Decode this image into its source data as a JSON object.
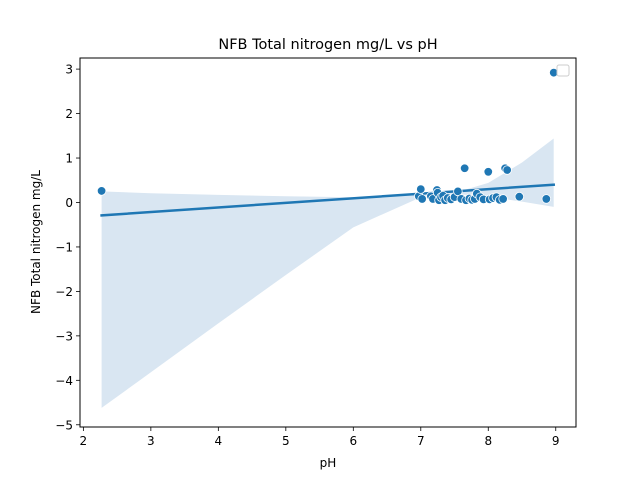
{
  "chart_data": {
    "type": "scatter",
    "title": "NFB Total nitrogen mg/L vs pH",
    "xlabel": "pH",
    "ylabel": "NFB Total nitrogen mg/L",
    "xlim": [
      1.95,
      9.3
    ],
    "ylim": [
      -5.05,
      3.25
    ],
    "xticks": [
      2,
      3,
      4,
      5,
      6,
      7,
      8,
      9
    ],
    "yticks": [
      -5,
      -4,
      -3,
      -2,
      -1,
      0,
      1,
      2,
      3
    ],
    "grid": false,
    "legend_position": "top-right",
    "points": [
      {
        "x": 2.27,
        "y": 0.26
      },
      {
        "x": 6.97,
        "y": 0.14
      },
      {
        "x": 7.0,
        "y": 0.3
      },
      {
        "x": 7.02,
        "y": 0.08
      },
      {
        "x": 7.15,
        "y": 0.14
      },
      {
        "x": 7.18,
        "y": 0.08
      },
      {
        "x": 7.24,
        "y": 0.28
      },
      {
        "x": 7.25,
        "y": 0.22
      },
      {
        "x": 7.27,
        "y": 0.05
      },
      {
        "x": 7.3,
        "y": 0.12
      },
      {
        "x": 7.33,
        "y": 0.15
      },
      {
        "x": 7.36,
        "y": 0.05
      },
      {
        "x": 7.4,
        "y": 0.1
      },
      {
        "x": 7.45,
        "y": 0.07
      },
      {
        "x": 7.5,
        "y": 0.12
      },
      {
        "x": 7.55,
        "y": 0.25
      },
      {
        "x": 7.6,
        "y": 0.08
      },
      {
        "x": 7.65,
        "y": 0.77
      },
      {
        "x": 7.67,
        "y": 0.05
      },
      {
        "x": 7.72,
        "y": 0.09
      },
      {
        "x": 7.76,
        "y": 0.06
      },
      {
        "x": 7.8,
        "y": 0.08
      },
      {
        "x": 7.83,
        "y": 0.2
      },
      {
        "x": 7.88,
        "y": 0.12
      },
      {
        "x": 7.93,
        "y": 0.07
      },
      {
        "x": 8.0,
        "y": 0.69
      },
      {
        "x": 8.02,
        "y": 0.07
      },
      {
        "x": 8.07,
        "y": 0.1
      },
      {
        "x": 8.12,
        "y": 0.12
      },
      {
        "x": 8.17,
        "y": 0.06
      },
      {
        "x": 8.22,
        "y": 0.08
      },
      {
        "x": 8.25,
        "y": 0.77
      },
      {
        "x": 8.28,
        "y": 0.73
      },
      {
        "x": 8.46,
        "y": 0.13
      },
      {
        "x": 8.86,
        "y": 0.08
      },
      {
        "x": 8.97,
        "y": 2.92
      }
    ],
    "regression_line": [
      {
        "x": 2.27,
        "y": -0.29
      },
      {
        "x": 8.97,
        "y": 0.4
      }
    ],
    "confidence_band": {
      "x": [
        2.27,
        3.0,
        4.0,
        5.0,
        6.0,
        7.0,
        7.6,
        8.0,
        8.5,
        8.97
      ],
      "lower": [
        -4.62,
        -3.82,
        -2.72,
        -1.63,
        -0.56,
        0.12,
        0.18,
        0.13,
        0.02,
        -0.1
      ],
      "upper": [
        0.25,
        0.21,
        0.17,
        0.14,
        0.12,
        0.21,
        0.26,
        0.44,
        0.9,
        1.44
      ]
    },
    "colors": {
      "marker": "#1f77b4",
      "marker_edge": "#ffffff",
      "line": "#1f77b4",
      "band": "#d9e6f2"
    }
  }
}
